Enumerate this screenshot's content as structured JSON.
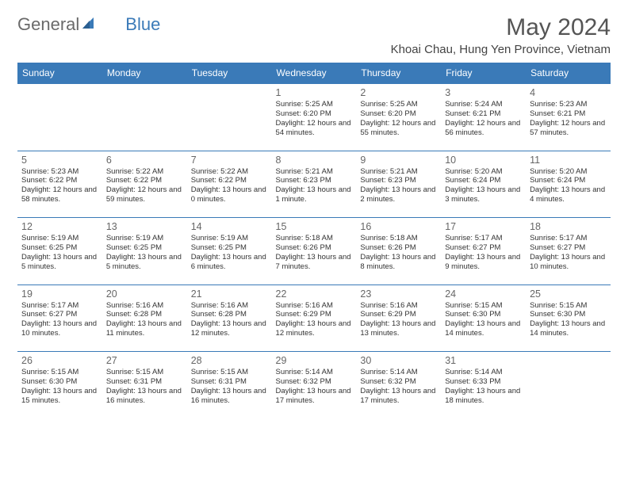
{
  "brand": {
    "part1": "General",
    "part2": "Blue"
  },
  "title": "May 2024",
  "location": "Khoai Chau, Hung Yen Province, Vietnam",
  "colors": {
    "header_bg": "#3a7ab8",
    "header_text": "#ffffff",
    "page_bg": "#ffffff",
    "day_num": "#666666",
    "body_text": "#333333",
    "divider": "#3a7ab8",
    "logo_gray": "#6a6a6a",
    "logo_blue": "#3a7ab8"
  },
  "weekdays": [
    "Sunday",
    "Monday",
    "Tuesday",
    "Wednesday",
    "Thursday",
    "Friday",
    "Saturday"
  ],
  "weeks": [
    [
      null,
      null,
      null,
      {
        "n": "1",
        "sr": "5:25 AM",
        "ss": "6:20 PM",
        "dl": "12 hours and 54 minutes."
      },
      {
        "n": "2",
        "sr": "5:25 AM",
        "ss": "6:20 PM",
        "dl": "12 hours and 55 minutes."
      },
      {
        "n": "3",
        "sr": "5:24 AM",
        "ss": "6:21 PM",
        "dl": "12 hours and 56 minutes."
      },
      {
        "n": "4",
        "sr": "5:23 AM",
        "ss": "6:21 PM",
        "dl": "12 hours and 57 minutes."
      }
    ],
    [
      {
        "n": "5",
        "sr": "5:23 AM",
        "ss": "6:22 PM",
        "dl": "12 hours and 58 minutes."
      },
      {
        "n": "6",
        "sr": "5:22 AM",
        "ss": "6:22 PM",
        "dl": "12 hours and 59 minutes."
      },
      {
        "n": "7",
        "sr": "5:22 AM",
        "ss": "6:22 PM",
        "dl": "13 hours and 0 minutes."
      },
      {
        "n": "8",
        "sr": "5:21 AM",
        "ss": "6:23 PM",
        "dl": "13 hours and 1 minute."
      },
      {
        "n": "9",
        "sr": "5:21 AM",
        "ss": "6:23 PM",
        "dl": "13 hours and 2 minutes."
      },
      {
        "n": "10",
        "sr": "5:20 AM",
        "ss": "6:24 PM",
        "dl": "13 hours and 3 minutes."
      },
      {
        "n": "11",
        "sr": "5:20 AM",
        "ss": "6:24 PM",
        "dl": "13 hours and 4 minutes."
      }
    ],
    [
      {
        "n": "12",
        "sr": "5:19 AM",
        "ss": "6:25 PM",
        "dl": "13 hours and 5 minutes."
      },
      {
        "n": "13",
        "sr": "5:19 AM",
        "ss": "6:25 PM",
        "dl": "13 hours and 5 minutes."
      },
      {
        "n": "14",
        "sr": "5:19 AM",
        "ss": "6:25 PM",
        "dl": "13 hours and 6 minutes."
      },
      {
        "n": "15",
        "sr": "5:18 AM",
        "ss": "6:26 PM",
        "dl": "13 hours and 7 minutes."
      },
      {
        "n": "16",
        "sr": "5:18 AM",
        "ss": "6:26 PM",
        "dl": "13 hours and 8 minutes."
      },
      {
        "n": "17",
        "sr": "5:17 AM",
        "ss": "6:27 PM",
        "dl": "13 hours and 9 minutes."
      },
      {
        "n": "18",
        "sr": "5:17 AM",
        "ss": "6:27 PM",
        "dl": "13 hours and 10 minutes."
      }
    ],
    [
      {
        "n": "19",
        "sr": "5:17 AM",
        "ss": "6:27 PM",
        "dl": "13 hours and 10 minutes."
      },
      {
        "n": "20",
        "sr": "5:16 AM",
        "ss": "6:28 PM",
        "dl": "13 hours and 11 minutes."
      },
      {
        "n": "21",
        "sr": "5:16 AM",
        "ss": "6:28 PM",
        "dl": "13 hours and 12 minutes."
      },
      {
        "n": "22",
        "sr": "5:16 AM",
        "ss": "6:29 PM",
        "dl": "13 hours and 12 minutes."
      },
      {
        "n": "23",
        "sr": "5:16 AM",
        "ss": "6:29 PM",
        "dl": "13 hours and 13 minutes."
      },
      {
        "n": "24",
        "sr": "5:15 AM",
        "ss": "6:30 PM",
        "dl": "13 hours and 14 minutes."
      },
      {
        "n": "25",
        "sr": "5:15 AM",
        "ss": "6:30 PM",
        "dl": "13 hours and 14 minutes."
      }
    ],
    [
      {
        "n": "26",
        "sr": "5:15 AM",
        "ss": "6:30 PM",
        "dl": "13 hours and 15 minutes."
      },
      {
        "n": "27",
        "sr": "5:15 AM",
        "ss": "6:31 PM",
        "dl": "13 hours and 16 minutes."
      },
      {
        "n": "28",
        "sr": "5:15 AM",
        "ss": "6:31 PM",
        "dl": "13 hours and 16 minutes."
      },
      {
        "n": "29",
        "sr": "5:14 AM",
        "ss": "6:32 PM",
        "dl": "13 hours and 17 minutes."
      },
      {
        "n": "30",
        "sr": "5:14 AM",
        "ss": "6:32 PM",
        "dl": "13 hours and 17 minutes."
      },
      {
        "n": "31",
        "sr": "5:14 AM",
        "ss": "6:33 PM",
        "dl": "13 hours and 18 minutes."
      },
      null
    ]
  ],
  "labels": {
    "sunrise": "Sunrise:",
    "sunset": "Sunset:",
    "daylight": "Daylight:"
  }
}
